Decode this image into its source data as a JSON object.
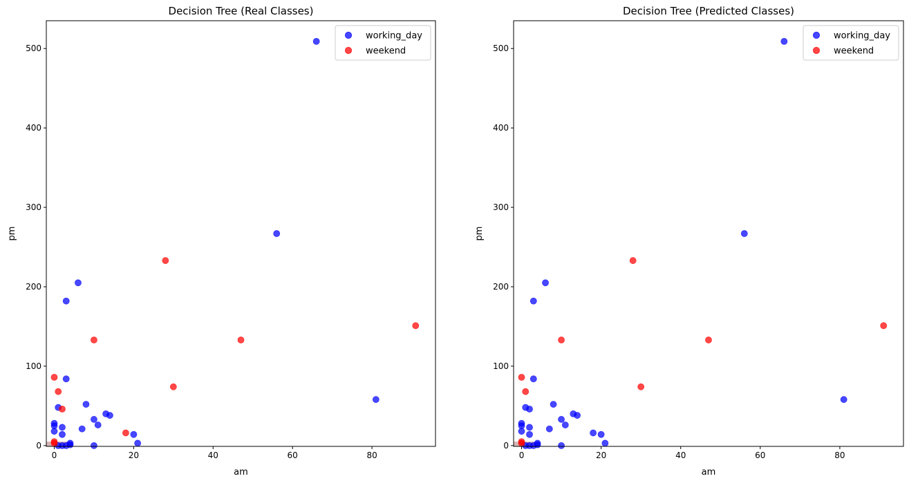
{
  "colors": {
    "working_day": "#0000ff",
    "weekend": "#ff0000",
    "region": "#c89c9c"
  },
  "chart_data": [
    {
      "type": "scatter",
      "title": "Decision Tree (Real Classes)",
      "xlabel": "am",
      "ylabel": "pm",
      "xlim": [
        -2,
        96
      ],
      "ylim": [
        -1,
        535
      ],
      "xticks": [
        0,
        20,
        40,
        60,
        80
      ],
      "yticks": [
        0,
        100,
        200,
        300,
        400,
        500
      ],
      "grid": false,
      "legend_position": "top-right",
      "highlight_region": {
        "x": [
          -2,
          4.5
        ],
        "y": [
          -1,
          5
        ]
      },
      "series": [
        {
          "name": "working_day",
          "color_key": "working_day",
          "points": [
            [
              66,
              509
            ],
            [
              56,
              267
            ],
            [
              6,
              205
            ],
            [
              3,
              182
            ],
            [
              3,
              84
            ],
            [
              81,
              58
            ],
            [
              8,
              52
            ],
            [
              1,
              48
            ],
            [
              13,
              40
            ],
            [
              14,
              38
            ],
            [
              10,
              33
            ],
            [
              0,
              28
            ],
            [
              11,
              26
            ],
            [
              0,
              25
            ],
            [
              2,
              23
            ],
            [
              7,
              21
            ],
            [
              0,
              18
            ],
            [
              2,
              14
            ],
            [
              20,
              14
            ],
            [
              21,
              3
            ],
            [
              4,
              3
            ],
            [
              10,
              0
            ],
            [
              2,
              0
            ],
            [
              3,
              0
            ],
            [
              4,
              1
            ],
            [
              1,
              0
            ]
          ]
        },
        {
          "name": "weekend",
          "color_key": "weekend",
          "points": [
            [
              28,
              233
            ],
            [
              91,
              151
            ],
            [
              10,
              133
            ],
            [
              47,
              133
            ],
            [
              0,
              86
            ],
            [
              30,
              74
            ],
            [
              1,
              68
            ],
            [
              2,
              46
            ],
            [
              18,
              16
            ],
            [
              0,
              5
            ],
            [
              0,
              3
            ]
          ]
        }
      ]
    },
    {
      "type": "scatter",
      "title": "Decision Tree (Predicted Classes)",
      "xlabel": "am",
      "ylabel": "pm",
      "xlim": [
        -2,
        96
      ],
      "ylim": [
        -1,
        535
      ],
      "xticks": [
        0,
        20,
        40,
        60,
        80
      ],
      "yticks": [
        0,
        100,
        200,
        300,
        400,
        500
      ],
      "grid": false,
      "legend_position": "top-right",
      "highlight_region": {
        "x": [
          -2,
          4.5
        ],
        "y": [
          -1,
          5
        ]
      },
      "series": [
        {
          "name": "working_day",
          "color_key": "working_day",
          "points": [
            [
              66,
              509
            ],
            [
              56,
              267
            ],
            [
              6,
              205
            ],
            [
              3,
              182
            ],
            [
              3,
              84
            ],
            [
              81,
              58
            ],
            [
              8,
              52
            ],
            [
              1,
              48
            ],
            [
              2,
              46
            ],
            [
              13,
              40
            ],
            [
              14,
              38
            ],
            [
              10,
              33
            ],
            [
              0,
              28
            ],
            [
              11,
              26
            ],
            [
              0,
              25
            ],
            [
              2,
              23
            ],
            [
              7,
              21
            ],
            [
              0,
              18
            ],
            [
              18,
              16
            ],
            [
              2,
              14
            ],
            [
              20,
              14
            ],
            [
              21,
              3
            ],
            [
              4,
              3
            ],
            [
              10,
              0
            ],
            [
              2,
              0
            ],
            [
              3,
              0
            ],
            [
              4,
              1
            ],
            [
              1,
              0
            ]
          ]
        },
        {
          "name": "weekend",
          "color_key": "weekend",
          "points": [
            [
              28,
              233
            ],
            [
              91,
              151
            ],
            [
              10,
              133
            ],
            [
              47,
              133
            ],
            [
              0,
              86
            ],
            [
              30,
              74
            ],
            [
              1,
              68
            ],
            [
              0,
              5
            ],
            [
              0,
              3
            ]
          ]
        }
      ]
    }
  ]
}
